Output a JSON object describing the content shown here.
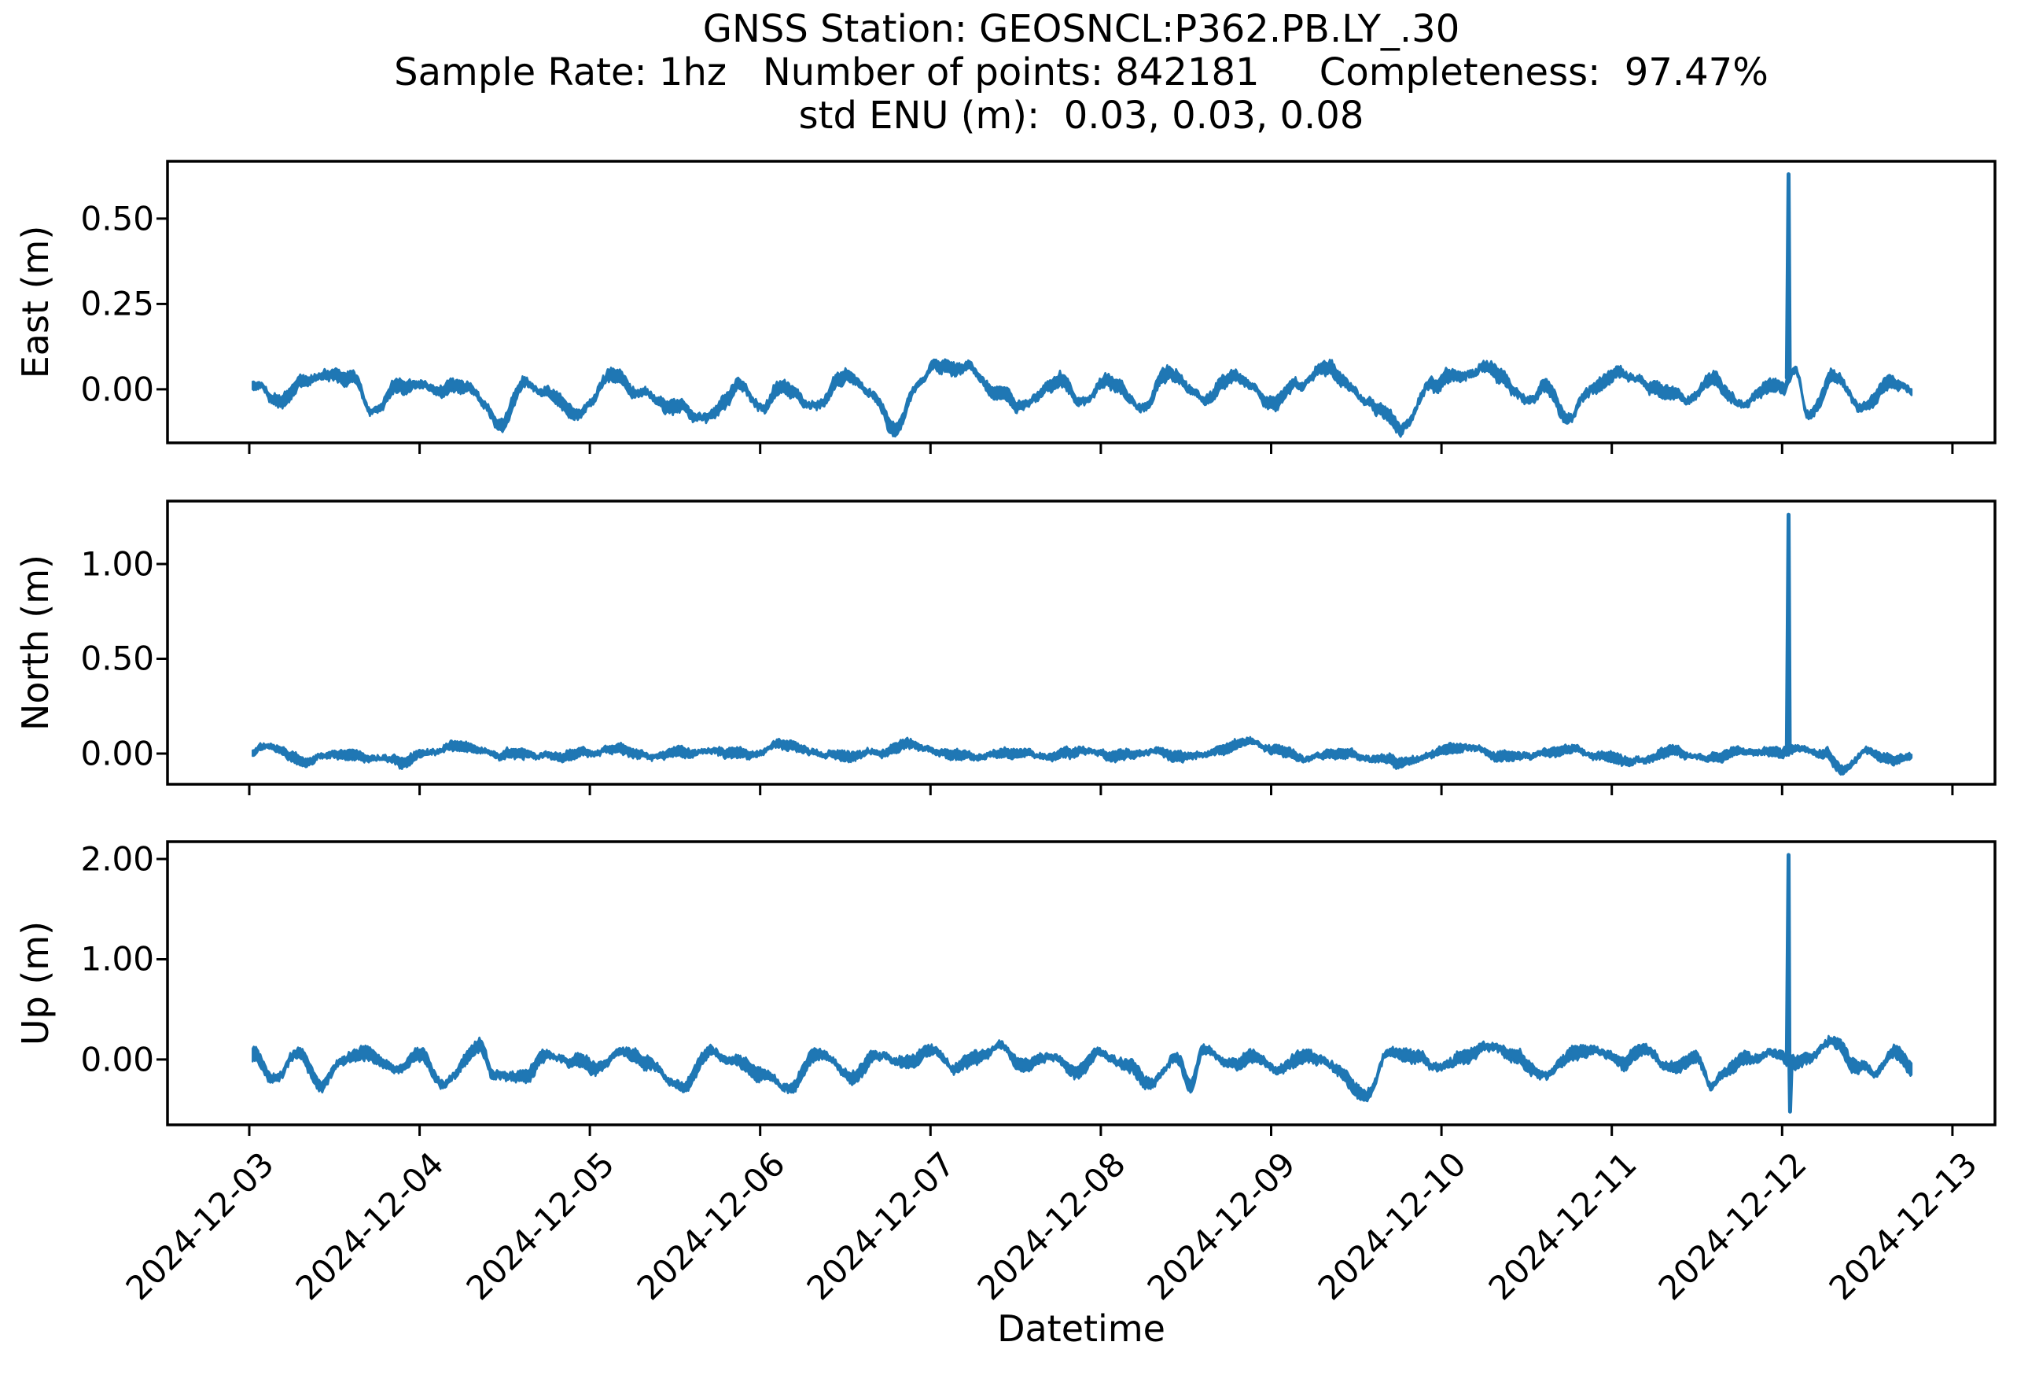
{
  "title": {
    "line1": "GNSS Station: GEOSNCL:P362.PB.LY_.30",
    "line2": "Sample Rate: 1hz   Number of points: 842181     Completeness:  97.47%",
    "line3": "std ENU (m):  0.03, 0.03, 0.08"
  },
  "colors": {
    "line": "#1f77b4",
    "axis": "#000000",
    "background": "#ffffff"
  },
  "chart_data": {
    "type": "line",
    "title": "GNSS Station: GEOSNCL:P362.PB.LY_.30",
    "stats": {
      "sample_rate": "1hz",
      "n_points": 842181,
      "completeness_pct": 97.47,
      "std_E_m": 0.03,
      "std_N_m": 0.03,
      "std_U_m": 0.08
    },
    "x_axis": {
      "label": "Datetime",
      "tick_labels": [
        "2024-12-03",
        "2024-12-04",
        "2024-12-05",
        "2024-12-06",
        "2024-12-07",
        "2024-12-08",
        "2024-12-09",
        "2024-12-10",
        "2024-12-11",
        "2024-12-12",
        "2024-12-13"
      ],
      "tick_days": [
        0,
        1,
        2,
        3,
        4,
        5,
        6,
        7,
        8,
        9,
        10
      ],
      "lim_days": [
        -0.48,
        10.25
      ],
      "data_start_day": 0.02,
      "data_end_day": 9.76,
      "grid": false,
      "legend": "none"
    },
    "subplots": [
      {
        "name": "East",
        "ylabel": "East (m)",
        "ytick_labels": [
          "0.50",
          "0.25",
          "0.00"
        ],
        "ytick_values": [
          0.5,
          0.25,
          0.0
        ],
        "ylim": [
          -0.157,
          0.668
        ],
        "series": {
          "color": "#1f77b4",
          "spike": {
            "day": 9.04,
            "peak": 0.63,
            "down": null
          },
          "noise": {
            "halfwidth": 0.015,
            "fast_amp": 0.012,
            "slow_amp": 0.012,
            "seed": 42
          },
          "keypoints": [
            [
              0.02,
              0.02
            ],
            [
              0.18,
              -0.02
            ],
            [
              0.35,
              0.035
            ],
            [
              0.6,
              0.03
            ],
            [
              0.72,
              -0.065
            ],
            [
              0.9,
              0.01
            ],
            [
              1.1,
              0.0
            ],
            [
              1.28,
              0.02
            ],
            [
              1.48,
              -0.095
            ],
            [
              1.62,
              0.01
            ],
            [
              1.78,
              -0.03
            ],
            [
              1.94,
              -0.075
            ],
            [
              2.12,
              0.04
            ],
            [
              2.3,
              -0.01
            ],
            [
              2.5,
              -0.04
            ],
            [
              2.7,
              -0.085
            ],
            [
              2.88,
              0.0
            ],
            [
              3.0,
              -0.055
            ],
            [
              3.15,
              0.01
            ],
            [
              3.3,
              -0.05
            ],
            [
              3.53,
              0.045
            ],
            [
              3.68,
              -0.02
            ],
            [
              3.79,
              -0.115
            ],
            [
              3.95,
              0.02
            ],
            [
              4.02,
              0.055
            ],
            [
              4.23,
              0.06
            ],
            [
              4.4,
              -0.01
            ],
            [
              4.55,
              -0.045
            ],
            [
              4.75,
              0.03
            ],
            [
              4.9,
              -0.03
            ],
            [
              5.05,
              0.02
            ],
            [
              5.23,
              -0.065
            ],
            [
              5.41,
              0.05
            ],
            [
              5.6,
              -0.02
            ],
            [
              5.8,
              0.04
            ],
            [
              6.0,
              -0.035
            ],
            [
              6.15,
              0.01
            ],
            [
              6.33,
              0.05
            ],
            [
              6.55,
              -0.03
            ],
            [
              6.78,
              -0.1
            ],
            [
              6.95,
              0.02
            ],
            [
              7.1,
              0.04
            ],
            [
              7.28,
              0.06
            ],
            [
              7.5,
              -0.04
            ],
            [
              7.62,
              0.0
            ],
            [
              7.74,
              -0.08
            ],
            [
              7.9,
              0.02
            ],
            [
              8.05,
              0.05
            ],
            [
              8.25,
              0.0
            ],
            [
              8.45,
              -0.03
            ],
            [
              8.6,
              0.02
            ],
            [
              8.76,
              -0.055
            ],
            [
              8.9,
              0.01
            ],
            [
              9.0,
              0.02
            ],
            [
              9.08,
              0.07
            ],
            [
              9.15,
              -0.075
            ],
            [
              9.3,
              0.03
            ],
            [
              9.49,
              -0.06
            ],
            [
              9.62,
              0.02
            ],
            [
              9.76,
              -0.01
            ]
          ]
        }
      },
      {
        "name": "North",
        "ylabel": "North (m)",
        "ytick_labels": [
          "1.00",
          "0.50",
          "0.00"
        ],
        "ytick_values": [
          1.0,
          0.5,
          0.0
        ],
        "ylim": [
          -0.162,
          1.332
        ],
        "series": {
          "color": "#1f77b4",
          "spike": {
            "day": 9.04,
            "peak": 1.26,
            "down": null
          },
          "noise": {
            "halfwidth": 0.02,
            "fast_amp": 0.011,
            "slow_amp": 0.008,
            "seed": 7
          },
          "keypoints": [
            [
              0.02,
              0.0
            ],
            [
              0.1,
              0.035
            ],
            [
              0.32,
              -0.045
            ],
            [
              0.5,
              0.0
            ],
            [
              0.7,
              -0.02
            ],
            [
              0.9,
              -0.035
            ],
            [
              1.05,
              0.01
            ],
            [
              1.23,
              0.035
            ],
            [
              1.45,
              -0.01
            ],
            [
              1.6,
              0.0
            ],
            [
              1.8,
              -0.015
            ],
            [
              2.0,
              0.01
            ],
            [
              2.17,
              0.03
            ],
            [
              2.35,
              -0.02
            ],
            [
              2.55,
              0.0
            ],
            [
              2.75,
              0.015
            ],
            [
              2.95,
              0.0
            ],
            [
              3.14,
              0.055
            ],
            [
              3.3,
              0.01
            ],
            [
              3.5,
              -0.02
            ],
            [
              3.7,
              0.0
            ],
            [
              3.89,
              0.055
            ],
            [
              4.05,
              0.01
            ],
            [
              4.25,
              -0.015
            ],
            [
              4.5,
              0.005
            ],
            [
              4.7,
              -0.02
            ],
            [
              4.9,
              0.01
            ],
            [
              5.1,
              -0.005
            ],
            [
              5.3,
              0.015
            ],
            [
              5.5,
              -0.02
            ],
            [
              5.68,
              0.01
            ],
            [
              5.85,
              0.06
            ],
            [
              6.0,
              0.02
            ],
            [
              6.2,
              -0.02
            ],
            [
              6.4,
              0.01
            ],
            [
              6.6,
              -0.03
            ],
            [
              6.8,
              -0.045
            ],
            [
              7.0,
              0.01
            ],
            [
              7.15,
              0.03
            ],
            [
              7.35,
              -0.01
            ],
            [
              7.55,
              0.0
            ],
            [
              7.75,
              0.02
            ],
            [
              7.95,
              -0.02
            ],
            [
              8.15,
              -0.045
            ],
            [
              8.35,
              0.01
            ],
            [
              8.55,
              -0.02
            ],
            [
              8.75,
              0.015
            ],
            [
              8.95,
              0.0
            ],
            [
              9.1,
              0.02
            ],
            [
              9.25,
              0.0
            ],
            [
              9.35,
              -0.085
            ],
            [
              9.5,
              0.01
            ],
            [
              9.65,
              -0.03
            ],
            [
              9.76,
              -0.01
            ]
          ]
        }
      },
      {
        "name": "Up",
        "ylabel": "Up (m)",
        "ytick_labels": [
          "2.00",
          "1.00",
          "0.00"
        ],
        "ytick_values": [
          2.0,
          1.0,
          0.0
        ],
        "ylim": [
          -0.652,
          2.173
        ],
        "series": {
          "color": "#1f77b4",
          "spike": {
            "day": 9.04,
            "peak": 2.04,
            "down": -0.52
          },
          "noise": {
            "halfwidth": 0.05,
            "fast_amp": 0.028,
            "slow_amp": 0.02,
            "seed": 1234
          },
          "keypoints": [
            [
              0.02,
              0.05
            ],
            [
              0.14,
              -0.2
            ],
            [
              0.3,
              0.05
            ],
            [
              0.42,
              -0.28
            ],
            [
              0.55,
              0.02
            ],
            [
              0.7,
              0.08
            ],
            [
              0.85,
              -0.1
            ],
            [
              1.0,
              0.05
            ],
            [
              1.14,
              -0.24
            ],
            [
              1.35,
              0.12
            ],
            [
              1.43,
              -0.16
            ],
            [
              1.59,
              -0.19
            ],
            [
              1.75,
              0.06
            ],
            [
              1.9,
              0.0
            ],
            [
              2.05,
              -0.08
            ],
            [
              2.2,
              0.08
            ],
            [
              2.35,
              -0.05
            ],
            [
              2.54,
              -0.3
            ],
            [
              2.7,
              0.06
            ],
            [
              2.85,
              0.0
            ],
            [
              3.0,
              -0.12
            ],
            [
              3.17,
              -0.28
            ],
            [
              3.35,
              0.06
            ],
            [
              3.53,
              -0.18
            ],
            [
              3.7,
              0.04
            ],
            [
              3.85,
              -0.05
            ],
            [
              4.0,
              0.1
            ],
            [
              4.15,
              -0.06
            ],
            [
              4.28,
              0.04
            ],
            [
              4.41,
              0.12
            ],
            [
              4.55,
              -0.08
            ],
            [
              4.7,
              0.03
            ],
            [
              4.85,
              -0.12
            ],
            [
              5.0,
              0.06
            ],
            [
              5.15,
              -0.05
            ],
            [
              5.3,
              -0.22
            ],
            [
              5.45,
              0.04
            ],
            [
              5.53,
              -0.3
            ],
            [
              5.6,
              0.1
            ],
            [
              5.75,
              -0.06
            ],
            [
              5.9,
              0.02
            ],
            [
              6.05,
              -0.1
            ],
            [
              6.2,
              0.05
            ],
            [
              6.35,
              -0.04
            ],
            [
              6.55,
              -0.35
            ],
            [
              6.7,
              0.06
            ],
            [
              6.85,
              0.0
            ],
            [
              7.0,
              -0.08
            ],
            [
              7.15,
              0.05
            ],
            [
              7.3,
              0.14
            ],
            [
              7.45,
              0.02
            ],
            [
              7.6,
              -0.16
            ],
            [
              7.75,
              0.04
            ],
            [
              7.9,
              0.08
            ],
            [
              8.05,
              -0.04
            ],
            [
              8.2,
              0.1
            ],
            [
              8.35,
              -0.08
            ],
            [
              8.5,
              0.04
            ],
            [
              8.58,
              -0.28
            ],
            [
              8.65,
              -0.12
            ],
            [
              8.8,
              0.02
            ],
            [
              8.95,
              0.05
            ],
            [
              9.1,
              -0.05
            ],
            [
              9.3,
              0.17
            ],
            [
              9.45,
              -0.06
            ],
            [
              9.55,
              -0.12
            ],
            [
              9.65,
              0.08
            ],
            [
              9.76,
              -0.08
            ]
          ]
        }
      }
    ]
  }
}
